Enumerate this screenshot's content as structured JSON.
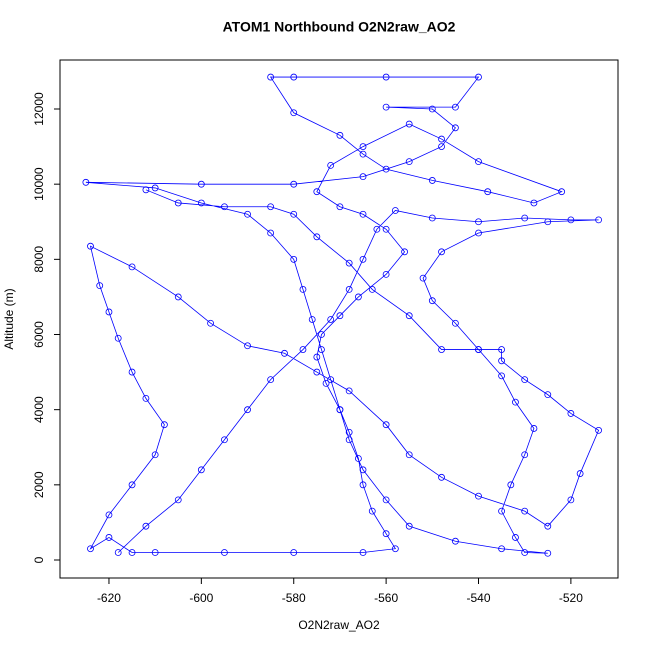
{
  "chart_data": {
    "type": "scatter",
    "lines": true,
    "title": "ATOM1 Northbound O2N2raw_AO2",
    "xlabel": "O2N2raw_AO2",
    "ylabel": "Altitude (m)",
    "color": "#0000ff",
    "xlim": [
      -630.6,
      -509.8
    ],
    "ylim": [
      -479,
      13304
    ],
    "xticks": [
      -620,
      -600,
      -580,
      -560,
      -540,
      -520
    ],
    "yticks": [
      0,
      2000,
      4000,
      6000,
      8000,
      10000,
      12000
    ],
    "x": [
      -618,
      -612,
      -605,
      -600,
      -595,
      -590,
      -585,
      -578,
      -572,
      -568,
      -565,
      -562,
      -558,
      -550,
      -540,
      -530,
      -520,
      -514,
      -525,
      -540,
      -548,
      -552,
      -550,
      -545,
      -540,
      -535,
      -532,
      -528,
      -530,
      -533,
      -535,
      -532,
      -530,
      -525,
      -535,
      -545,
      -555,
      -560,
      -565,
      -568,
      -570,
      -572,
      -574,
      -576,
      -578,
      -580,
      -585,
      -590,
      -600,
      -610,
      -625,
      -600,
      -580,
      -565,
      -555,
      -548,
      -545,
      -550,
      -560,
      -545,
      -540,
      -560,
      -580,
      -585,
      -580,
      -570,
      -565,
      -560,
      -550,
      -538,
      -528,
      -522,
      -540,
      -548,
      -555,
      -565,
      -572,
      -575,
      -570,
      -565,
      -560,
      -556,
      -560,
      -566,
      -570,
      -574,
      -575,
      -573,
      -570,
      -568,
      -566,
      -565,
      -563,
      -560,
      -558,
      -565,
      -580,
      -595,
      -610,
      -615,
      -620,
      -624,
      -620,
      -615,
      -610,
      -608,
      -612,
      -615,
      -618,
      -620,
      -622,
      -624,
      -615,
      -605,
      -598,
      -590,
      -582,
      -575,
      -568,
      -560,
      -555,
      -548,
      -540,
      -530,
      -525,
      -520,
      -518,
      -514,
      -520,
      -525,
      -530,
      -535,
      -535,
      -540,
      -548,
      -555,
      -563,
      -568,
      -575,
      -580,
      -585,
      -595,
      -605,
      -612
    ],
    "values": [
      200,
      900,
      1600,
      2400,
      3200,
      4000,
      4800,
      5600,
      6400,
      7200,
      8000,
      8800,
      9300,
      9100,
      9000,
      9100,
      9050,
      9050,
      9000,
      8700,
      8200,
      7500,
      6900,
      6300,
      5600,
      4900,
      4200,
      3500,
      2800,
      2000,
      1300,
      600,
      200,
      180,
      300,
      500,
      900,
      1600,
      2400,
      3200,
      4000,
      4800,
      5600,
      6400,
      7200,
      8000,
      8700,
      9200,
      9500,
      9900,
      10050,
      10000,
      10000,
      10200,
      10600,
      11000,
      11500,
      12000,
      12050,
      12050,
      12850,
      12850,
      12850,
      12850,
      11900,
      11300,
      10800,
      10400,
      10100,
      9800,
      9500,
      9800,
      10600,
      11200,
      11600,
      11000,
      10500,
      9800,
      9400,
      9200,
      8800,
      8200,
      7600,
      7000,
      6500,
      6000,
      5400,
      4700,
      4000,
      3400,
      2700,
      2000,
      1300,
      700,
      300,
      200,
      200,
      200,
      200,
      200,
      600,
      300,
      1200,
      2000,
      2800,
      3600,
      4300,
      5000,
      5900,
      6600,
      7300,
      8350,
      7800,
      7000,
      6300,
      5700,
      5500,
      5000,
      4500,
      3600,
      2800,
      2200,
      1700,
      1300,
      900,
      1600,
      2300,
      3450,
      3900,
      4400,
      4800,
      5300,
      5600,
      5600,
      5600,
      6500,
      7200,
      7900,
      8600,
      9200,
      9400,
      9400,
      9500,
      9850
    ]
  }
}
